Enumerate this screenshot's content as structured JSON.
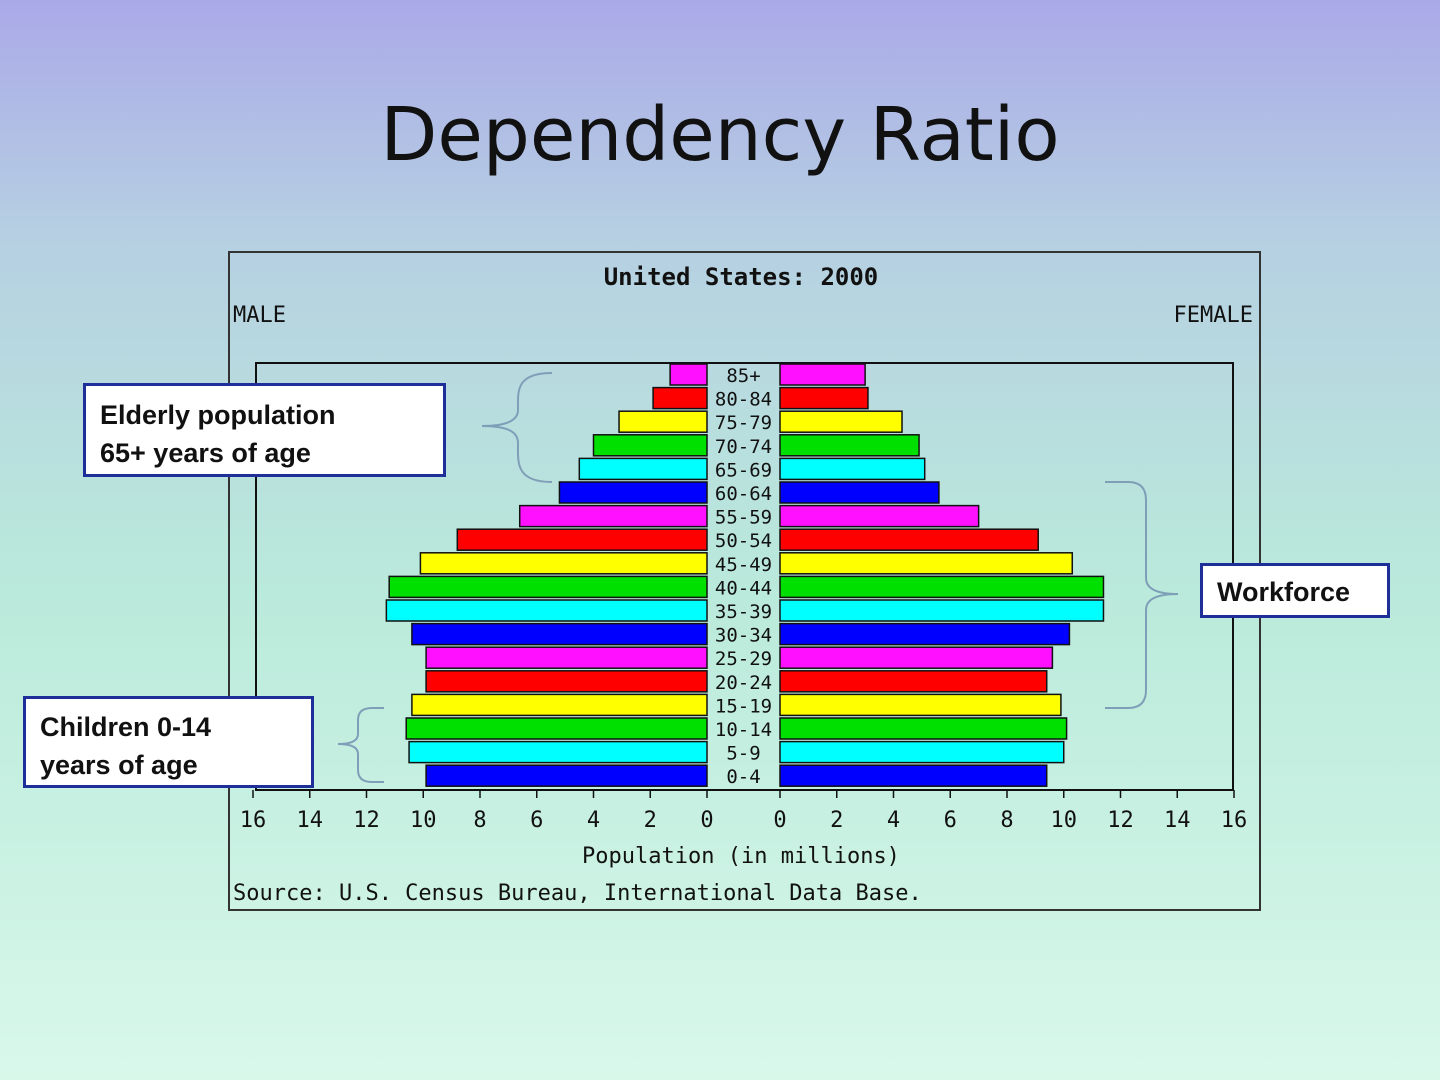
{
  "slide": {
    "title": "Dependency Ratio"
  },
  "callouts": {
    "elderly": [
      "Elderly population",
      "65+ years of age"
    ],
    "children": [
      "Children 0-14",
      "years of age"
    ],
    "workforce": [
      "Workforce"
    ]
  },
  "chart_data": {
    "type": "bar",
    "orientation": "population-pyramid",
    "title": "United States: 2000",
    "left_label": "MALE",
    "right_label": "FEMALE",
    "xlabel": "Population (in millions)",
    "source": "Source: U.S. Census Bureau, International Data Base.",
    "xlim": [
      0,
      16
    ],
    "x_ticks": [
      "0",
      "2",
      "4",
      "6",
      "8",
      "10",
      "12",
      "14",
      "16"
    ],
    "categories": [
      "85+",
      "80-84",
      "75-79",
      "70-74",
      "65-69",
      "60-64",
      "55-59",
      "50-54",
      "45-49",
      "40-44",
      "35-39",
      "30-34",
      "25-29",
      "20-24",
      "15-19",
      "10-14",
      "5-9",
      "0-4"
    ],
    "series": [
      {
        "name": "MALE",
        "values": [
          1.3,
          1.9,
          3.1,
          4.0,
          4.5,
          5.2,
          6.6,
          8.8,
          10.1,
          11.2,
          11.3,
          10.4,
          9.9,
          9.9,
          10.4,
          10.6,
          10.5,
          9.9
        ]
      },
      {
        "name": "FEMALE",
        "values": [
          3.0,
          3.1,
          4.3,
          4.9,
          5.1,
          5.6,
          7.0,
          9.1,
          10.3,
          11.4,
          11.4,
          10.2,
          9.6,
          9.4,
          9.9,
          10.1,
          10.0,
          9.4
        ]
      }
    ],
    "bar_colors": [
      "#ff10ff",
      "#ff0000",
      "#ffff00",
      "#00e000",
      "#00ffff",
      "#0000ff"
    ]
  }
}
